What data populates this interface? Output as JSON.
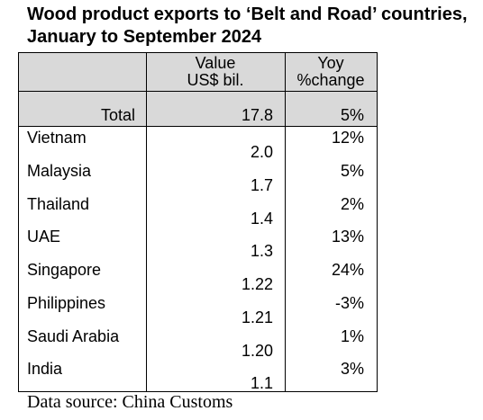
{
  "title": {
    "line1": "Wood product exports to ‘Belt and Road’ countries,",
    "line2": "January to September 2024"
  },
  "source": "Data source: China Customs",
  "colors": {
    "header_fill": "#d9d9d9",
    "border": "#000000",
    "text": "#000000"
  },
  "chart_data": {
    "type": "table",
    "column_headers": {
      "value": [
        "Value",
        "US$ bil."
      ],
      "yoy": [
        "Yoy",
        "%change"
      ]
    },
    "total": {
      "label": "Total",
      "value": "17.8",
      "yoy": "5%"
    },
    "rows": [
      {
        "country": "Vietnam",
        "value": "2.0",
        "yoy": "12%"
      },
      {
        "country": "Malaysia",
        "value": "1.7",
        "yoy": "5%"
      },
      {
        "country": "Thailand",
        "value": "1.4",
        "yoy": "2%"
      },
      {
        "country": "UAE",
        "value": "1.3",
        "yoy": "13%"
      },
      {
        "country": "Singapore",
        "value": "1.22",
        "yoy": "24%"
      },
      {
        "country": "Philippines",
        "value": "1.21",
        "yoy": "-3%"
      },
      {
        "country": "Saudi Arabia",
        "value": "1.20",
        "yoy": "1%"
      },
      {
        "country": "India",
        "value": "1.1",
        "yoy": "3%"
      }
    ]
  }
}
